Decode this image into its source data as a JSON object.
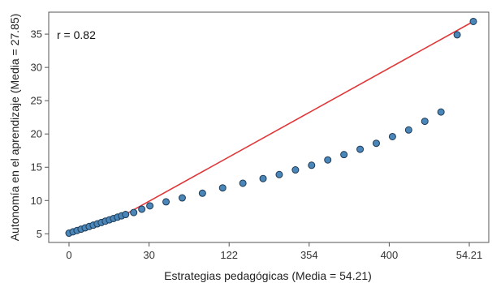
{
  "chart_data": {
    "type": "scatter",
    "title": "",
    "xlabel": "Estrategias pedagógicas (Media = 54.21)",
    "ylabel": "Autonomía en el aprendizaje (Media = 27.85)",
    "annotation": "r = 0.82",
    "grid": false,
    "x_ticks": [
      {
        "pos": 0,
        "label": "0"
      },
      {
        "pos": 0.198,
        "label": "30"
      },
      {
        "pos": 0.396,
        "label": "122"
      },
      {
        "pos": 0.594,
        "label": "354"
      },
      {
        "pos": 0.792,
        "label": "400"
      },
      {
        "pos": 0.99,
        "label": "54.21"
      }
    ],
    "ylim": [
      3.7,
      38.3
    ],
    "y_ticks": [
      5,
      10,
      15,
      20,
      25,
      30,
      35
    ],
    "colors": {
      "point_fill": "#4a86b8",
      "point_stroke": "#1e3a56",
      "fit_line": "#e0383a",
      "axis": "#555555"
    },
    "series": [
      {
        "x": [
          0,
          0.01,
          0.02,
          0.03,
          0.04,
          0.05,
          0.06,
          0.07,
          0.08,
          0.09,
          0.1,
          0.11,
          0.12,
          0.13,
          0.14,
          0.16,
          0.18,
          0.2,
          0.24,
          0.28,
          0.33,
          0.38,
          0.43,
          0.48,
          0.52,
          0.56,
          0.6,
          0.64,
          0.68,
          0.72,
          0.76,
          0.8,
          0.84,
          0.88,
          0.92,
          0.96,
          1.0
        ],
        "y": [
          5.1,
          5.3,
          5.5,
          5.7,
          5.9,
          6.1,
          6.3,
          6.5,
          6.7,
          6.9,
          7.1,
          7.3,
          7.5,
          7.7,
          7.9,
          8.2,
          8.7,
          9.2,
          9.8,
          10.4,
          11.1,
          11.9,
          12.6,
          13.3,
          13.9,
          14.6,
          15.3,
          16.1,
          16.9,
          17.7,
          18.6,
          19.6,
          20.6,
          21.9,
          23.3,
          34.9,
          36.9
        ]
      }
    ],
    "fit_line": {
      "x": [
        0,
        0.133,
        1.0
      ],
      "y": [
        5.1,
        7.7,
        36.9
      ]
    }
  }
}
